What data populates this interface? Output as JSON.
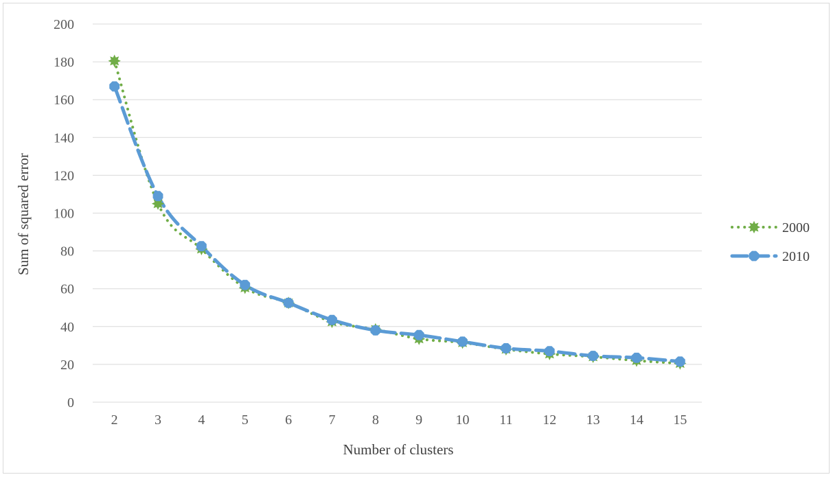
{
  "chart_data": {
    "type": "line",
    "title": "",
    "xlabel": "Number of clusters",
    "ylabel": "Sum of squared error",
    "categories": [
      "2",
      "3",
      "4",
      "5",
      "6",
      "7",
      "8",
      "9",
      "10",
      "11",
      "12",
      "13",
      "14",
      "15"
    ],
    "ylim": [
      0,
      200
    ],
    "yticks": [
      "0",
      "20",
      "40",
      "60",
      "80",
      "100",
      "120",
      "140",
      "160",
      "180",
      "200"
    ],
    "grid": true,
    "legend_position": "right",
    "series": [
      {
        "name": "2000",
        "color": "#70ad47",
        "line_style": "dotted",
        "marker": "star",
        "values": [
          180.5,
          105,
          81,
          60.5,
          52.5,
          42.5,
          38.5,
          33.5,
          31.5,
          28,
          25.5,
          24,
          22,
          20.5
        ]
      },
      {
        "name": "2010",
        "color": "#5b9bd5",
        "line_style": "dashed",
        "marker": "octagon",
        "values": [
          167,
          109,
          82.5,
          62,
          52.5,
          43.5,
          38,
          35.5,
          32,
          28.5,
          27,
          24.5,
          23.5,
          21.5
        ]
      }
    ]
  }
}
